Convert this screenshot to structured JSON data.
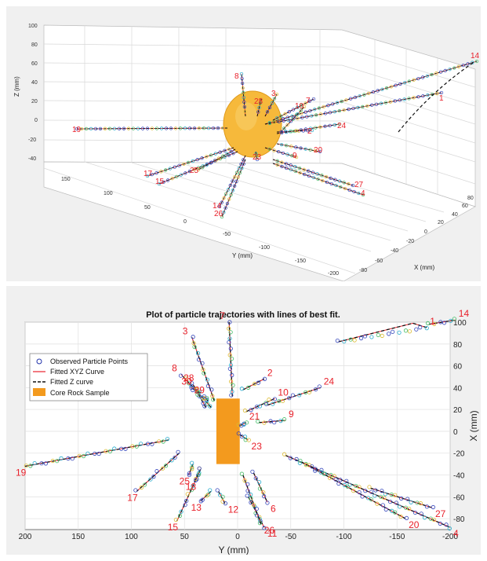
{
  "chart_data": [
    {
      "type": "scatter",
      "projection": "3d",
      "xlabel": "X (mm)",
      "ylabel": "Y (mm)",
      "zlabel": "Z (mm)",
      "xticks": [
        "-80",
        "-60",
        "-40",
        "-20",
        "0",
        "20",
        "40",
        "60",
        "80"
      ],
      "yticks": [
        "150",
        "100",
        "50",
        "0",
        "-50",
        "-100",
        "-150",
        "-200"
      ],
      "zticks": [
        "100",
        "80",
        "60",
        "40",
        "20",
        "0",
        "-20",
        "-40"
      ],
      "xlim": [
        -80,
        80
      ],
      "ylim": [
        -200,
        150
      ],
      "zlim": [
        -40,
        100
      ],
      "grid": true,
      "trajectory_labels": [
        "14",
        "1",
        "8",
        "3",
        "28",
        "7",
        "10",
        "19",
        "2",
        "24",
        "20",
        "9",
        "17",
        "15",
        "25",
        "23",
        "27",
        "4",
        "14",
        "26"
      ]
    },
    {
      "type": "scatter",
      "title": "Plot of particle trajectories with lines of best fit.",
      "xlabel": "Y (mm)",
      "ylabel": "X (mm)",
      "xlim": [
        200,
        -200
      ],
      "ylim": [
        -90,
        100
      ],
      "xticks": [
        200,
        150,
        100,
        50,
        0,
        -50,
        -100,
        -150,
        -200
      ],
      "yticks": [
        100,
        80,
        60,
        40,
        20,
        0,
        -20,
        -40,
        -60,
        -80
      ],
      "grid": true,
      "legend": [
        "Observed Particle Points",
        "Fitted XYZ Curve",
        "Fitted Z curve",
        "Core Rock Sample"
      ],
      "legend_position": "top-left",
      "core_sample": {
        "y": [
          -2,
          20
        ],
        "x": [
          -30,
          30
        ]
      },
      "trajectories": [
        {
          "id": "1",
          "y": [
            -95,
            -165,
            -178
          ],
          "x": [
            82,
            99,
            95
          ]
        },
        {
          "id": "2",
          "y": [
            -5,
            -25
          ],
          "x": [
            38,
            48
          ]
        },
        {
          "id": "3",
          "y": [
            22,
            43
          ],
          "x": [
            28,
            86
          ]
        },
        {
          "id": "4",
          "y": [
            -45,
            -200
          ],
          "x": [
            -22,
            -88
          ]
        },
        {
          "id": "6",
          "y": [
            -15,
            -28
          ],
          "x": [
            -38,
            -65
          ]
        },
        {
          "id": "7",
          "y": [
            5,
            8
          ],
          "x": [
            32,
            100
          ]
        },
        {
          "id": "8",
          "y": [
            25,
            53
          ],
          "x": [
            22,
            52
          ]
        },
        {
          "id": "9",
          "y": [
            -20,
            -45
          ],
          "x": [
            8,
            10
          ]
        },
        {
          "id": "10",
          "y": [
            -8,
            -35
          ],
          "x": [
            18,
            30
          ]
        },
        {
          "id": "11",
          "y": [
            -10,
            -25
          ],
          "x": [
            -60,
            -88
          ]
        },
        {
          "id": "12",
          "y": [
            18,
            12
          ],
          "x": [
            -55,
            -66
          ]
        },
        {
          "id": "13",
          "y": [
            25,
            35
          ],
          "x": [
            -55,
            -64
          ]
        },
        {
          "id": "14",
          "y": [
            -180,
            -205
          ],
          "x": [
            98,
            102
          ]
        },
        {
          "id": "15",
          "y": [
            35,
            57
          ],
          "x": [
            -35,
            -82
          ]
        },
        {
          "id": "17",
          "y": [
            55,
            95
          ],
          "x": [
            -20,
            -55
          ]
        },
        {
          "id": "18",
          "y": [
            35,
            40
          ],
          "x": [
            -35,
            -45
          ]
        },
        {
          "id": "19",
          "y": [
            65,
            200
          ],
          "x": [
            -8,
            -32
          ]
        },
        {
          "id": "20",
          "y": [
            -60,
            -158
          ],
          "x": [
            -28,
            -80
          ]
        },
        {
          "id": "21",
          "y": [
            -2,
            -8
          ],
          "x": [
            5,
            8
          ]
        },
        {
          "id": "23",
          "y": [
            -2,
            -10
          ],
          "x": [
            -3,
            -8
          ]
        },
        {
          "id": "24",
          "y": [
            -28,
            -78
          ],
          "x": [
            24,
            40
          ]
        },
        {
          "id": "25",
          "y": [
            42,
            46
          ],
          "x": [
            -30,
            -40
          ]
        },
        {
          "id": "26",
          "y": [
            -5,
            -22
          ],
          "x": [
            -40,
            -85
          ]
        },
        {
          "id": "27",
          "y": [
            -125,
            -183
          ],
          "x": [
            -52,
            -70
          ]
        },
        {
          "id": "28",
          "y": [
            30,
            42
          ],
          "x": [
            22,
            43
          ]
        },
        {
          "id": "29",
          "y": [
            28,
            32
          ],
          "x": [
            28,
            32
          ]
        },
        {
          "id": "30",
          "y": [
            35,
            44
          ],
          "x": [
            35,
            40
          ]
        }
      ]
    }
  ]
}
